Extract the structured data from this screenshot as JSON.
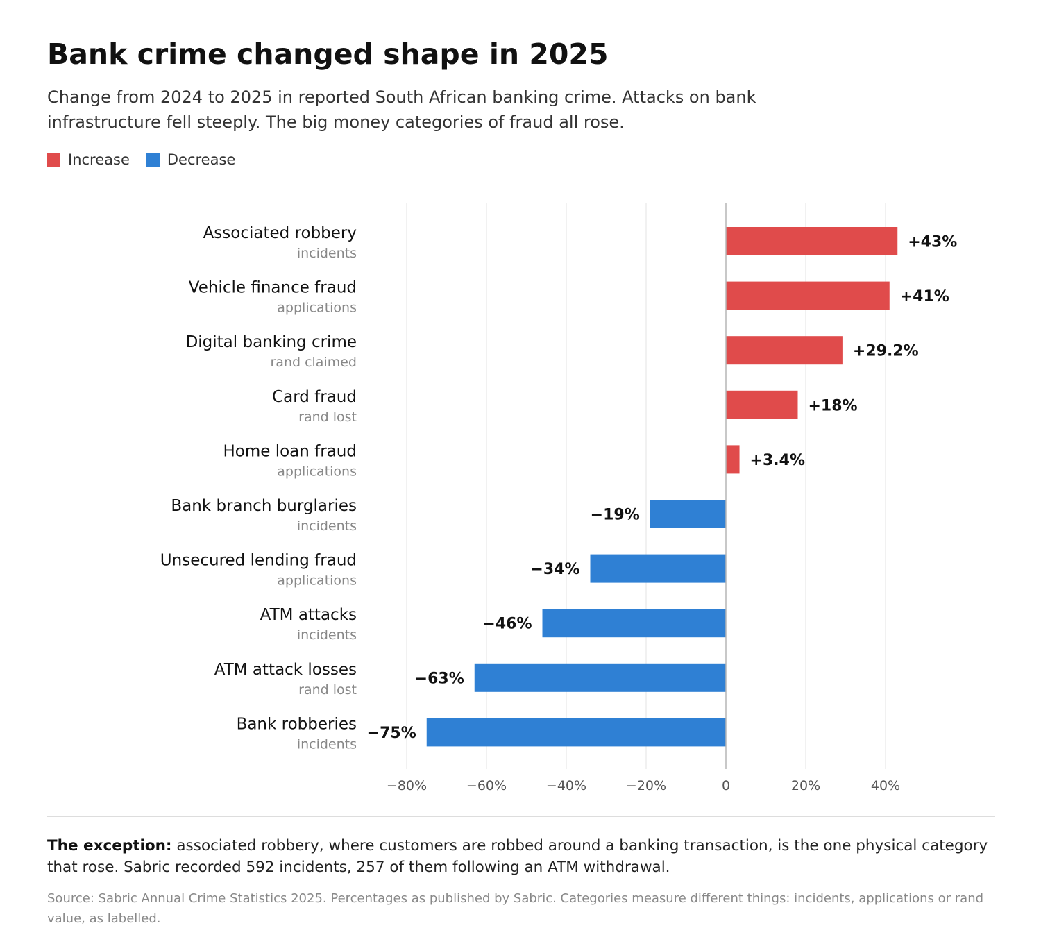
{
  "title": "Bank crime changed shape in 2025",
  "subtitle": "Change from 2024 to 2025 in reported South African banking crime. Attacks on bank infrastructure fell steeply. The big money categories of fraud all rose.",
  "legend": [
    {
      "label": "Increase",
      "color": "#e04b4b"
    },
    {
      "label": "Decrease",
      "color": "#2f80d4"
    }
  ],
  "chart_data": {
    "type": "bar",
    "orientation": "horizontal",
    "categories": [
      {
        "name": "Associated robbery",
        "unit": "incidents"
      },
      {
        "name": "Vehicle finance fraud",
        "unit": "applications"
      },
      {
        "name": "Digital banking crime",
        "unit": "rand claimed"
      },
      {
        "name": "Card fraud",
        "unit": "rand lost"
      },
      {
        "name": "Home loan fraud",
        "unit": "applications"
      },
      {
        "name": "Bank branch burglaries",
        "unit": "incidents"
      },
      {
        "name": "Unsecured lending fraud",
        "unit": "applications"
      },
      {
        "name": "ATM attacks",
        "unit": "incidents"
      },
      {
        "name": "ATM attack losses",
        "unit": "rand lost"
      },
      {
        "name": "Bank robberies",
        "unit": "incidents"
      }
    ],
    "values": [
      43,
      41,
      29.2,
      18,
      3.4,
      -19,
      -34,
      -46,
      -63,
      -75
    ],
    "labels": [
      "+43%",
      "+41%",
      "+29.2%",
      "+18%",
      "+3.4%",
      "−19%",
      "−34%",
      "−46%",
      "−63%",
      "−75%"
    ],
    "xlim": [
      -80,
      50
    ],
    "xticks": [
      -80,
      -60,
      -40,
      -20,
      0,
      20,
      40
    ],
    "xtick_labels": [
      "−80%",
      "−60%",
      "−40%",
      "−20%",
      "0",
      "20%",
      "40%"
    ],
    "grid": true,
    "legend_position": "top-left",
    "colors": {
      "increase": "#e04b4b",
      "decrease": "#2f80d4"
    }
  },
  "note": {
    "lead": "The exception:",
    "text": " associated robbery, where customers are robbed around a banking transaction, is the one physical category that rose. Sabric recorded 592 incidents, 257 of them following an ATM withdrawal."
  },
  "source": "Source: Sabric Annual Crime Statistics 2025. Percentages as published by Sabric. Categories measure different things: incidents, applications or rand value, as labelled."
}
